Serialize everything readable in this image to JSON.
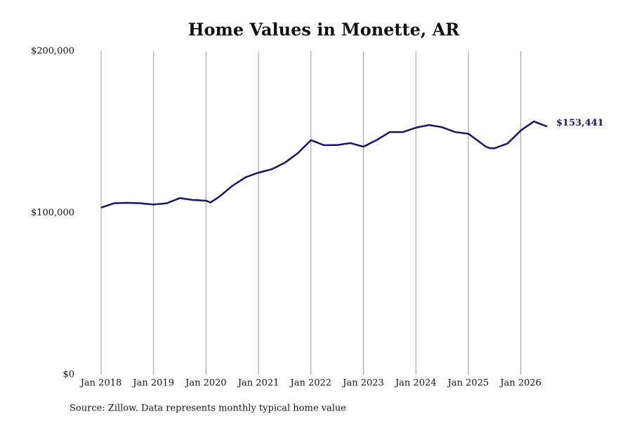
{
  "chart_data": {
    "type": "line",
    "title": "Home Values in Monette, AR",
    "source": "Source: Zillow. Data represents monthly typical home value",
    "x": [
      "2018-01",
      "2018-02",
      "2018-03",
      "2018-04",
      "2018-05",
      "2018-06",
      "2018-07",
      "2018-08",
      "2018-09",
      "2018-10",
      "2018-11",
      "2018-12",
      "2019-01",
      "2019-02",
      "2019-03",
      "2019-04",
      "2019-05",
      "2019-06",
      "2019-07",
      "2019-08",
      "2019-09",
      "2019-10",
      "2019-11",
      "2019-12",
      "2020-01",
      "2020-02",
      "2020-03",
      "2020-04",
      "2020-05",
      "2020-06",
      "2020-07",
      "2020-08",
      "2020-09",
      "2020-10",
      "2020-11",
      "2020-12",
      "2021-01",
      "2021-02",
      "2021-03",
      "2021-04",
      "2021-05",
      "2021-06",
      "2021-07",
      "2021-08",
      "2021-09",
      "2021-10",
      "2021-11",
      "2021-12",
      "2022-01",
      "2022-02",
      "2022-03",
      "2022-04",
      "2022-05",
      "2022-06",
      "2022-07",
      "2022-08",
      "2022-09",
      "2022-10",
      "2022-11",
      "2022-12",
      "2023-01",
      "2023-02",
      "2023-03",
      "2023-04",
      "2023-05",
      "2023-06",
      "2023-07",
      "2023-08",
      "2023-09",
      "2023-10",
      "2023-11",
      "2023-12",
      "2024-01",
      "2024-02",
      "2024-03",
      "2024-04",
      "2024-05",
      "2024-06",
      "2024-07",
      "2024-08",
      "2024-09",
      "2024-10",
      "2024-11",
      "2024-12",
      "2025-01",
      "2025-02",
      "2025-03",
      "2025-04",
      "2025-05",
      "2025-06",
      "2025-07",
      "2025-08",
      "2025-09",
      "2025-10",
      "2025-11",
      "2025-12",
      "2026-01",
      "2026-02",
      "2026-03",
      "2026-04",
      "2026-05",
      "2026-06",
      "2026-07"
    ],
    "series": [
      {
        "color": "#14146b",
        "values": [
          103300,
          104200,
          105100,
          106000,
          106100,
          106200,
          106300,
          106200,
          106100,
          106000,
          105700,
          105500,
          105200,
          105500,
          105700,
          106000,
          107100,
          108100,
          109200,
          108800,
          108400,
          108000,
          107900,
          107700,
          107600,
          106500,
          108200,
          110000,
          112200,
          114500,
          116700,
          118500,
          120200,
          122000,
          123000,
          124000,
          124900,
          125600,
          126300,
          127000,
          128300,
          129700,
          131000,
          133000,
          135000,
          137000,
          139700,
          142300,
          145000,
          144000,
          142900,
          141900,
          141900,
          142000,
          142000,
          142400,
          142800,
          143200,
          142500,
          141700,
          141000,
          142300,
          143700,
          145000,
          146700,
          148300,
          150000,
          150000,
          150000,
          150000,
          150900,
          151800,
          152700,
          153300,
          153800,
          154400,
          153900,
          153500,
          153000,
          152000,
          151000,
          150000,
          149700,
          149300,
          149000,
          147000,
          145000,
          143000,
          141000,
          140000,
          140000,
          141000,
          142000,
          143000,
          145700,
          148300,
          151000,
          152900,
          154700,
          156600,
          155500,
          154500,
          153441
        ],
        "value_labels": [
          null,
          null,
          null,
          null,
          null,
          null,
          null,
          null,
          null,
          null,
          null,
          null,
          null,
          null,
          null,
          null,
          null,
          null,
          null,
          null,
          null,
          null,
          null,
          null,
          null,
          null,
          null,
          null,
          null,
          null,
          null,
          null,
          null,
          null,
          null,
          null,
          null,
          null,
          null,
          null,
          null,
          null,
          null,
          null,
          null,
          null,
          null,
          null,
          null,
          null,
          null,
          null,
          null,
          null,
          null,
          null,
          null,
          null,
          null,
          null,
          null,
          null,
          null,
          null,
          null,
          null,
          null,
          null,
          null,
          null,
          null,
          null,
          null,
          null,
          null,
          null,
          null,
          null,
          null,
          null,
          null,
          null,
          null,
          null,
          null,
          null,
          null,
          null,
          null,
          null,
          null,
          null,
          null,
          null,
          null,
          null,
          null,
          null,
          null,
          null,
          null,
          null,
          "$153,441"
        ]
      }
    ],
    "xlim": [
      "2018-01",
      "2026-07"
    ],
    "xticks": [
      {
        "value": "2018-01",
        "label": "Jan 2018"
      },
      {
        "value": "2019-01",
        "label": "Jan 2019"
      },
      {
        "value": "2020-01",
        "label": "Jan 2020"
      },
      {
        "value": "2021-01",
        "label": "Jan 2021"
      },
      {
        "value": "2022-01",
        "label": "Jan 2022"
      },
      {
        "value": "2023-01",
        "label": "Jan 2023"
      },
      {
        "value": "2024-01",
        "label": "Jan 2024"
      },
      {
        "value": "2025-01",
        "label": "Jan 2025"
      },
      {
        "value": "2026-01",
        "label": "Jan 2026"
      }
    ],
    "ylim": [
      0,
      200000
    ],
    "yticks": [
      {
        "value": 0,
        "label": "$0"
      },
      {
        "value": 100000,
        "label": "$100,000"
      },
      {
        "value": 200000,
        "label": "$200,000"
      }
    ],
    "grid": "x"
  }
}
